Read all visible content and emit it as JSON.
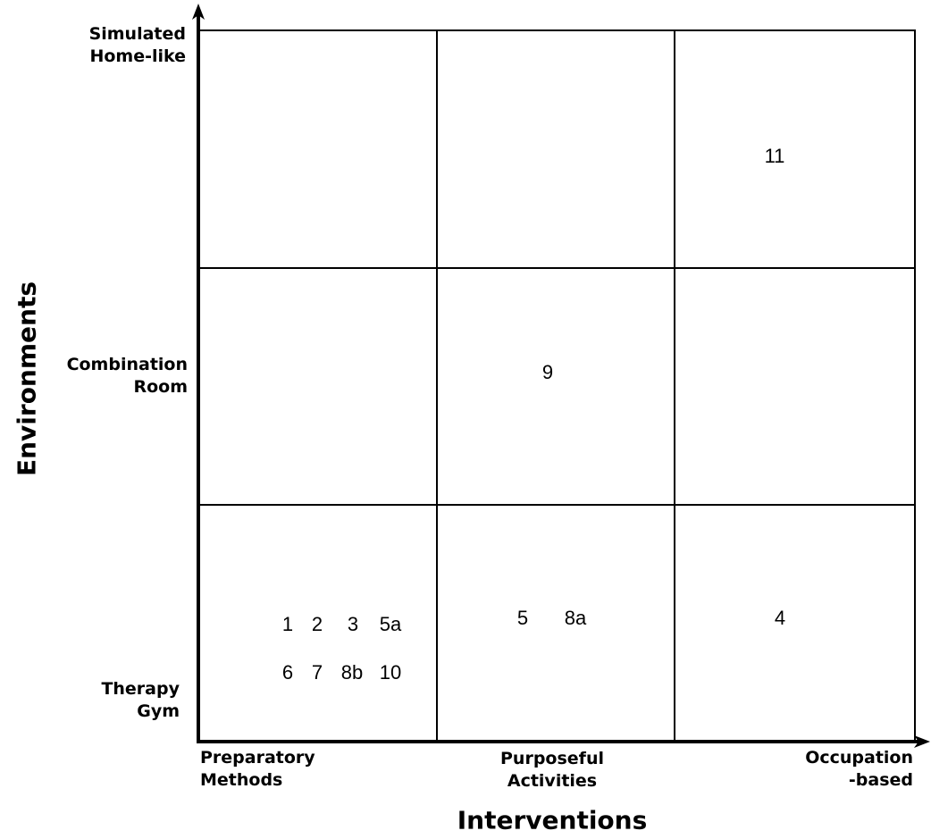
{
  "axes": {
    "y_title": "Environments",
    "x_title": "Interventions",
    "y_levels": [
      {
        "line1": "Simulated",
        "line2": "Home-like"
      },
      {
        "line1": "Combination",
        "line2": "Room"
      },
      {
        "line1": "Therapy",
        "line2": "Gym"
      }
    ],
    "x_levels": [
      {
        "line1": "Preparatory",
        "line2": "Methods"
      },
      {
        "line1": "Purposeful",
        "line2": "Activities"
      },
      {
        "line1": "Occupation",
        "line2": "-based"
      }
    ]
  },
  "cells": {
    "home_occupation": [
      "11"
    ],
    "combination_purposeful": [
      "9"
    ],
    "gym_preparatory_row1": [
      "1",
      "2",
      "3",
      "5a"
    ],
    "gym_preparatory_row2": [
      "6",
      "7",
      "8b",
      "10"
    ],
    "gym_purposeful": [
      "5",
      "8a"
    ],
    "gym_occupation": [
      "4"
    ]
  },
  "colors": {
    "line": "#000000",
    "background": "#ffffff"
  }
}
